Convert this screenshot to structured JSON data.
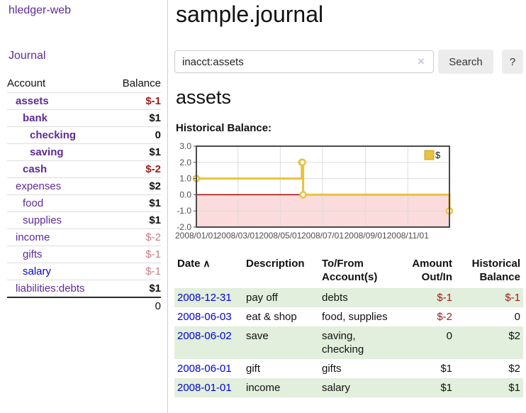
{
  "app": {
    "brand": "hledger-web",
    "nav_journal": "Journal"
  },
  "sidebar": {
    "header": {
      "account": "Account",
      "balance": "Balance"
    },
    "accounts": [
      {
        "name": "assets",
        "indent": 1,
        "bold": true,
        "balance": "$-1",
        "vclass": "neg"
      },
      {
        "name": "bank",
        "indent": 2,
        "bold": true,
        "balance": "$1",
        "vclass": ""
      },
      {
        "name": "checking",
        "indent": 3,
        "bold": true,
        "balance": "0",
        "vclass": ""
      },
      {
        "name": "saving",
        "indent": 3,
        "bold": true,
        "balance": "$1",
        "vclass": ""
      },
      {
        "name": "cash",
        "indent": 2,
        "bold": true,
        "balance": "$-2",
        "vclass": "neg"
      },
      {
        "name": "expenses",
        "indent": 1,
        "bold": false,
        "balance": "$2",
        "vclass": ""
      },
      {
        "name": "food",
        "indent": 2,
        "bold": false,
        "balance": "$1",
        "vclass": ""
      },
      {
        "name": "supplies",
        "indent": 2,
        "bold": false,
        "balance": "$1",
        "vclass": ""
      },
      {
        "name": "income",
        "indent": 1,
        "bold": false,
        "balance": "$-2",
        "vclass": "negm"
      },
      {
        "name": "gifts",
        "indent": 2,
        "bold": false,
        "balance": "$-1",
        "vclass": "negm"
      },
      {
        "name": "salary",
        "indent": 2,
        "bold": false,
        "balance": "$-1",
        "vclass": "negm",
        "link": "blue"
      },
      {
        "name": "liabilities:debts",
        "indent": 1,
        "bold": false,
        "balance": "$1",
        "vclass": ""
      }
    ],
    "total": "0"
  },
  "header": {
    "title": "sample.journal"
  },
  "search": {
    "value": "inacct:assets",
    "clear_icon": "×",
    "button_label": "Search",
    "help_label": "?"
  },
  "account_page": {
    "heading": "assets",
    "chart_title": "Historical Balance:"
  },
  "chart_data": {
    "type": "line",
    "style": "step",
    "series": [
      {
        "name": "$",
        "points": [
          [
            "2008-01-01",
            1
          ],
          [
            "2008-06-01",
            2
          ],
          [
            "2008-06-02",
            2
          ],
          [
            "2008-06-03",
            0
          ],
          [
            "2008-12-31",
            -1
          ]
        ]
      }
    ],
    "xlim": [
      "2008-01-01",
      "2008-12-31"
    ],
    "ylim": [
      -2,
      3
    ],
    "x_ticks": [
      {
        "date": "2008-01-01",
        "label": "2008/01/01"
      },
      {
        "date": "2008-03-01",
        "label": "2008/03/01"
      },
      {
        "date": "2008-05-01",
        "label": "2008/05/01"
      },
      {
        "date": "2008-07-01",
        "label": "2008/07/01"
      },
      {
        "date": "2008-09-01",
        "label": "2008/09/01"
      },
      {
        "date": "2008-11-01",
        "label": "2008/11/01"
      }
    ],
    "y_ticks": [
      "3.0",
      "2.0",
      "1.0",
      "0.0",
      "-1.0",
      "-2.0"
    ],
    "legend": {
      "label": "$",
      "position": "top-right"
    },
    "grid": true,
    "colors": {
      "line": "#e8c240",
      "marker_fill": "#ffffff",
      "legend_box_border": "#c9a227",
      "negative_region": "#fbdbdb",
      "zero_line": "#a40000",
      "border": "#4a4a4a",
      "gridline": "#dcdcdc",
      "tick_text": "#4d4d4d"
    }
  },
  "register": {
    "sort_icon": "∧",
    "columns": [
      {
        "lines": "Date",
        "align": "al",
        "sorted": true
      },
      {
        "lines": "Description",
        "align": "al"
      },
      {
        "lines": "To/From\nAccount(s)",
        "align": "al"
      },
      {
        "lines": "Amount\nOut/In",
        "align": "ar"
      },
      {
        "lines": "Historical\nBalance",
        "align": "ar"
      }
    ],
    "rows": [
      {
        "date": "2008-12-31",
        "description": "pay off",
        "accounts": "debts",
        "amount": "$-1",
        "amount_neg": true,
        "balance": "$-1",
        "balance_neg": true,
        "shaded": true
      },
      {
        "date": "2008-06-03",
        "description": "eat & shop",
        "accounts": "food, supplies",
        "amount": "$-2",
        "amount_neg": true,
        "balance": "0",
        "balance_neg": false,
        "shaded": false
      },
      {
        "date": "2008-06-02",
        "description": "save",
        "accounts": "saving,\nchecking",
        "amount": "0",
        "amount_neg": false,
        "balance": "$2",
        "balance_neg": false,
        "shaded": true
      },
      {
        "date": "2008-06-01",
        "description": "gift",
        "accounts": "gifts",
        "amount": "$1",
        "amount_neg": false,
        "balance": "$2",
        "balance_neg": false,
        "shaded": false
      },
      {
        "date": "2008-01-01",
        "description": "income",
        "accounts": "salary",
        "amount": "$1",
        "amount_neg": false,
        "balance": "$1",
        "balance_neg": false,
        "shaded": true
      }
    ]
  }
}
